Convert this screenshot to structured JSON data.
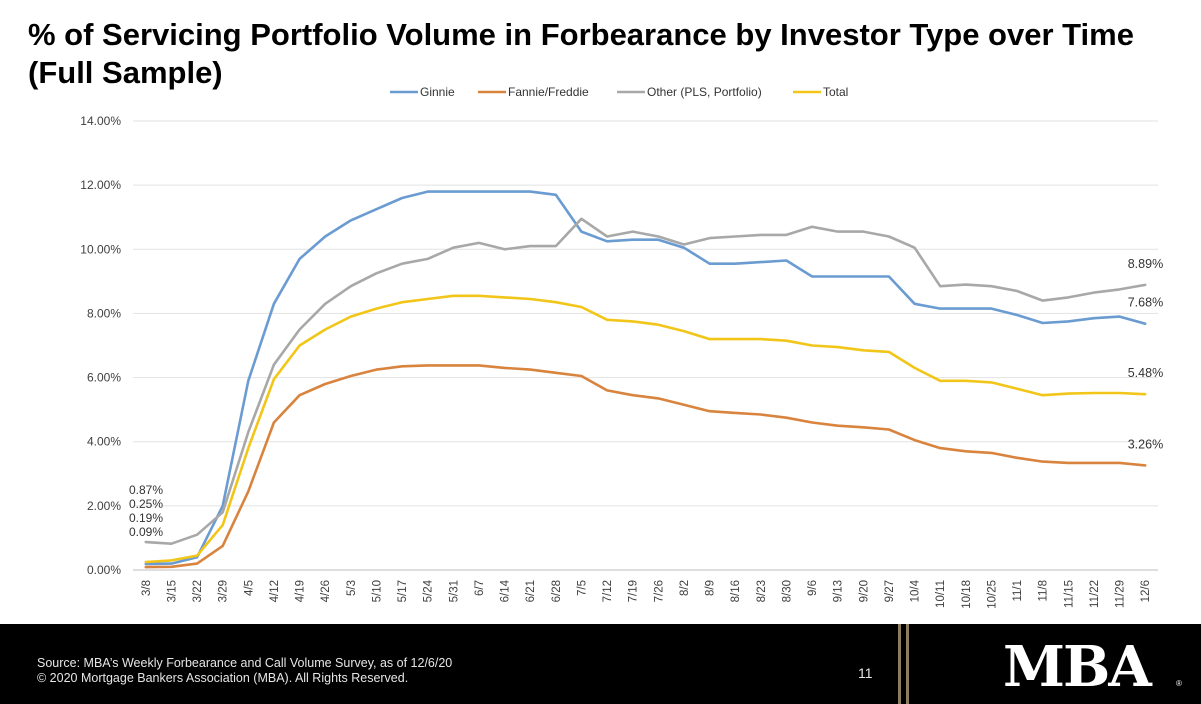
{
  "page": {
    "title": "% of Servicing Portfolio Volume in Forbearance by Investor Type over Time (Full Sample)"
  },
  "footer": {
    "source": "Source: MBA’s Weekly Forbearance and Call Volume Survey, as of 12/6/20",
    "copyright": "© 2020 Mortgage Bankers Association (MBA). All Rights Reserved.",
    "page_number": "11",
    "logo": "MBA",
    "registered": "®"
  },
  "colors": {
    "ginnie": "#6a9bd1",
    "fannie": "#d9843e",
    "other": "#a8a8a8",
    "total": "#f2c618",
    "footer_bg": "#000000",
    "divider": "#8b7d5e"
  },
  "chart_data": {
    "type": "line",
    "title": "",
    "xlabel": "",
    "ylabel": "",
    "ylim": [
      0,
      14
    ],
    "yticks": [
      "0.00%",
      "2.00%",
      "4.00%",
      "6.00%",
      "8.00%",
      "10.00%",
      "12.00%",
      "14.00%"
    ],
    "legend_position": "top",
    "grid": true,
    "categories": [
      "3/8",
      "3/15",
      "3/22",
      "3/29",
      "4/5",
      "4/12",
      "4/19",
      "4/26",
      "5/3",
      "5/10",
      "5/17",
      "5/24",
      "5/31",
      "6/7",
      "6/14",
      "6/21",
      "6/28",
      "7/5",
      "7/12",
      "7/19",
      "7/26",
      "8/2",
      "8/9",
      "8/16",
      "8/23",
      "8/30",
      "9/6",
      "9/13",
      "9/20",
      "9/27",
      "10/4",
      "10/11",
      "10/18",
      "10/25",
      "11/1",
      "11/8",
      "11/15",
      "11/22",
      "11/29",
      "12/6"
    ],
    "series": [
      {
        "name": "Ginnie",
        "color": "#6a9bd1",
        "values": [
          0.19,
          0.2,
          0.4,
          2.0,
          5.9,
          8.3,
          9.7,
          10.4,
          10.9,
          11.25,
          11.6,
          11.8,
          11.8,
          11.8,
          11.8,
          11.8,
          11.7,
          10.55,
          10.25,
          10.3,
          10.3,
          10.05,
          9.55,
          9.55,
          9.6,
          9.65,
          9.15,
          9.15,
          9.15,
          9.15,
          8.3,
          8.15,
          8.15,
          8.15,
          7.95,
          7.7,
          7.75,
          7.85,
          7.9,
          7.68
        ]
      },
      {
        "name": "Fannie/Freddie",
        "color": "#d9843e",
        "values": [
          0.09,
          0.1,
          0.2,
          0.75,
          2.45,
          4.6,
          5.45,
          5.8,
          6.05,
          6.25,
          6.35,
          6.38,
          6.38,
          6.38,
          6.3,
          6.25,
          6.15,
          6.05,
          5.6,
          5.45,
          5.35,
          5.15,
          4.95,
          4.9,
          4.85,
          4.75,
          4.6,
          4.5,
          4.45,
          4.38,
          4.05,
          3.8,
          3.7,
          3.65,
          3.5,
          3.38,
          3.34,
          3.34,
          3.34,
          3.26
        ]
      },
      {
        "name": "Other (PLS, Portfolio)",
        "color": "#a8a8a8",
        "values": [
          0.87,
          0.82,
          1.1,
          1.8,
          4.3,
          6.4,
          7.5,
          8.3,
          8.85,
          9.25,
          9.55,
          9.7,
          10.05,
          10.2,
          10.0,
          10.1,
          10.1,
          10.95,
          10.4,
          10.55,
          10.4,
          10.15,
          10.35,
          10.4,
          10.45,
          10.45,
          10.7,
          10.55,
          10.55,
          10.4,
          10.05,
          8.85,
          8.9,
          8.85,
          8.7,
          8.4,
          8.5,
          8.65,
          8.75,
          8.89
        ]
      },
      {
        "name": "Total",
        "color": "#f2c618",
        "values": [
          0.25,
          0.3,
          0.45,
          1.4,
          3.8,
          5.95,
          7.0,
          7.5,
          7.9,
          8.15,
          8.35,
          8.45,
          8.55,
          8.55,
          8.5,
          8.45,
          8.35,
          8.2,
          7.8,
          7.75,
          7.65,
          7.45,
          7.2,
          7.2,
          7.2,
          7.15,
          7.0,
          6.95,
          6.85,
          6.8,
          6.3,
          5.9,
          5.9,
          5.85,
          5.65,
          5.45,
          5.5,
          5.52,
          5.52,
          5.48
        ]
      }
    ],
    "annotations": {
      "start": [
        "0.87%",
        "0.25%",
        "0.19%",
        "0.09%"
      ],
      "end": [
        {
          "text": "8.89%",
          "value": 8.89
        },
        {
          "text": "7.68%",
          "value": 7.68
        },
        {
          "text": "5.48%",
          "value": 5.48
        },
        {
          "text": "3.26%",
          "value": 3.26
        }
      ]
    }
  }
}
